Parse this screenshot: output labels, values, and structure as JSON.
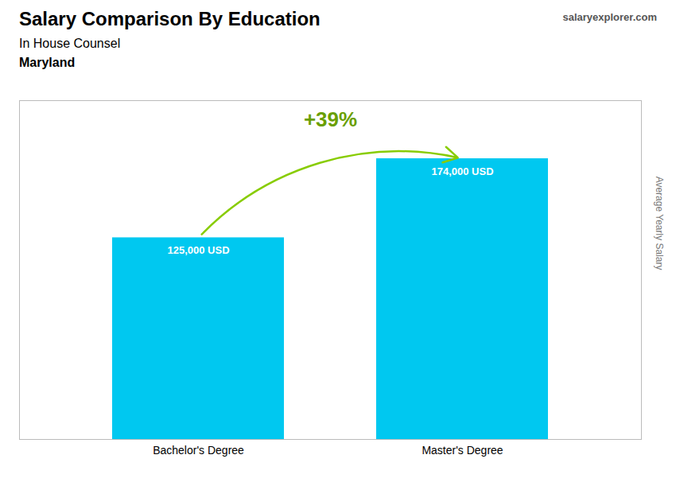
{
  "chart_data": {
    "type": "bar",
    "title": "Salary Comparison By Education",
    "subtitle": "In House Counsel",
    "location": "Maryland",
    "source": "salaryexplorer.com",
    "ylabel": "Average Yearly Salary",
    "categories": [
      "Bachelor's Degree",
      "Master's Degree"
    ],
    "values": [
      125000,
      174000
    ],
    "value_labels": [
      "125,000 USD",
      "174,000 USD"
    ],
    "data_labels": true,
    "annotation": "+39%",
    "color": "#00c8f0",
    "ylim": [
      0,
      210000
    ],
    "tick_labels": "x",
    "grid": false
  }
}
